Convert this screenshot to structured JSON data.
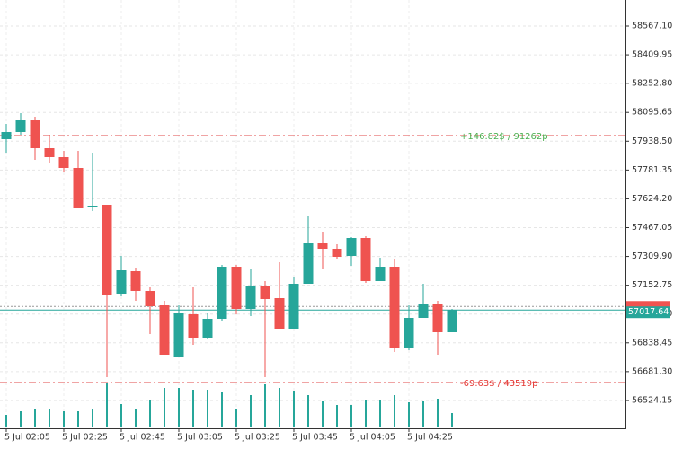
{
  "chart_data": {
    "type": "candlestick",
    "categories": [
      "5 Jul 02:05",
      null,
      null,
      null,
      "5 Jul 02:25",
      null,
      null,
      null,
      "5 Jul 02:45",
      null,
      null,
      null,
      "5 Jul 03:05",
      null,
      null,
      null,
      "5 Jul 03:25",
      null,
      null,
      null,
      "5 Jul 03:45",
      null,
      null,
      null,
      "5 Jul 04:05",
      null,
      null,
      null,
      "5 Jul 04:25",
      null,
      null,
      null
    ],
    "ohlc": [
      [
        57949.7,
        58033.0,
        57876.2,
        57988.9
      ],
      [
        57988.9,
        58091.8,
        57974.2,
        58052.6
      ],
      [
        58052.6,
        58072.2,
        57837.0,
        57900.7
      ],
      [
        57900.7,
        57974.2,
        57817.4,
        57851.7
      ],
      [
        57851.7,
        57886.0,
        57768.4,
        57792.9
      ],
      [
        57792.9,
        57886.0,
        57572.4,
        57572.4
      ],
      [
        57577.3,
        57876.2,
        57557.7,
        57587.1
      ],
      [
        57592.0,
        57592.0,
        56651.2,
        57097.1
      ],
      [
        57106.9,
        57312.7,
        57092.2,
        57234.3
      ],
      [
        57229.4,
        57249.0,
        57067.7,
        57121.6
      ],
      [
        57121.6,
        57141.2,
        56886.4,
        57038.3
      ],
      [
        57043.2,
        57067.7,
        56773.7,
        56773.7
      ],
      [
        56763.9,
        57043.2,
        56759.0,
        56999.1
      ],
      [
        56994.2,
        57141.2,
        56827.6,
        56866.8
      ],
      [
        56866.8,
        57004.0,
        56857.0,
        56969.7
      ],
      [
        56969.7,
        57263.7,
        56959.9,
        57253.9
      ],
      [
        57253.9,
        57263.7,
        56994.2,
        57023.6
      ],
      [
        57023.6,
        57244.1,
        56984.4,
        57146.1
      ],
      [
        57146.1,
        57175.5,
        56651.2,
        57077.5
      ],
      [
        57082.4,
        57278.4,
        56915.8,
        56915.8
      ],
      [
        56915.8,
        57200.0,
        56915.8,
        57160.8
      ],
      [
        57160.8,
        57528.3,
        57160.8,
        57381.3
      ],
      [
        57381.3,
        57445.0,
        57239.2,
        57351.9
      ],
      [
        57351.9,
        57376.4,
        57298.0,
        57307.8
      ],
      [
        57312.7,
        57415.6,
        57258.8,
        57410.7
      ],
      [
        57410.7,
        57420.5,
        57165.7,
        57175.5
      ],
      [
        57175.5,
        57302.9,
        57175.5,
        57253.9
      ],
      [
        57253.9,
        57298.0,
        56788.4,
        56808.0
      ],
      [
        56808.0,
        57043.2,
        56798.2,
        56974.6
      ],
      [
        56974.6,
        57160.8,
        56974.6,
        57053.0
      ],
      [
        57053.0,
        57067.7,
        56773.7,
        56896.2
      ],
      [
        56896.2,
        57023.6,
        56896.2,
        57017.64
      ]
    ],
    "volumes": [
      14,
      18,
      21,
      20,
      18,
      18,
      20,
      50,
      26,
      21,
      31,
      44,
      44,
      42,
      42,
      40,
      21,
      36,
      48,
      44,
      41,
      36,
      30,
      25,
      25,
      31,
      31,
      36,
      28,
      29,
      32,
      16
    ],
    "up_color": "#26a69a",
    "down_color": "#ef5350",
    "volume_color": "#26a69a",
    "ylim": [
      56371.9,
      58709.2
    ],
    "yticks": [
      {
        "value": 58567.1,
        "label": "58567.10"
      },
      58409.95,
      {
        "value": 58252.8,
        "label": "58252.80"
      },
      58095.65,
      {
        "value": 57938.5,
        "label": "57938.50"
      },
      57781.35,
      {
        "value": 57624.2,
        "label": "57624.20"
      },
      57467.05,
      {
        "value": 57309.9,
        "label": "57309.90"
      },
      57152.75,
      {
        "value": 56995.6,
        "label": "56995.60"
      },
      56838.45,
      {
        "value": 56681.3,
        "label": "56681.30"
      },
      56524.15
    ],
    "grid": true,
    "levels": [
      {
        "value": 57969.3,
        "label": "+146.82$ / 91262p",
        "color": "#e04a4a",
        "label_color": "#4caf50"
      },
      {
        "value": 56621.8,
        "label": "-69.63$ / 43519p",
        "color": "#e04a4a",
        "label_color": "#e53935"
      }
    ],
    "ask": 57037.0,
    "bid": {
      "value": 57017.64,
      "label": "57017.64"
    }
  }
}
